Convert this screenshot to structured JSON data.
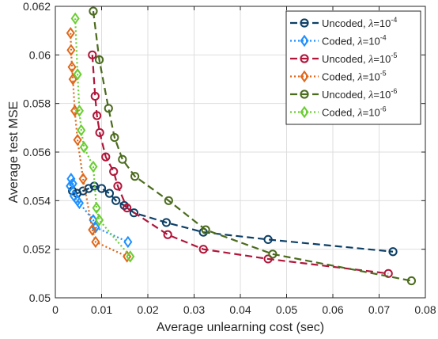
{
  "chart_data": {
    "type": "line",
    "xlabel": "Average unlearning cost (sec)",
    "ylabel": "Average test MSE",
    "xlim": [
      0,
      0.08
    ],
    "ylim": [
      0.05,
      0.062
    ],
    "x_ticks": [
      "0",
      "0.01",
      "0.02",
      "0.03",
      "0.04",
      "0.05",
      "0.06",
      "0.07",
      "0.08"
    ],
    "y_ticks": [
      "0.05",
      "0.052",
      "0.054",
      "0.056",
      "0.058",
      "0.06",
      "0.062"
    ],
    "grid": true,
    "legend_position": "top-right",
    "series": [
      {
        "name": "Uncoded, λ=10^-4",
        "label_text": "Uncoded, ",
        "lambda_sym": "λ",
        "lambda_base": "=10",
        "lambda_exp": "-4",
        "color": "#0d3f66",
        "line_style": "dashed",
        "marker": "circle",
        "points": [
          [
            0.0037,
            0.0544
          ],
          [
            0.0047,
            0.0543
          ],
          [
            0.006,
            0.0544
          ],
          [
            0.0072,
            0.0545
          ],
          [
            0.0084,
            0.0546
          ],
          [
            0.01,
            0.0545
          ],
          [
            0.0117,
            0.0543
          ],
          [
            0.0131,
            0.054
          ],
          [
            0.0149,
            0.0538
          ],
          [
            0.017,
            0.0535
          ],
          [
            0.024,
            0.0531
          ],
          [
            0.032,
            0.0527
          ],
          [
            0.046,
            0.0524
          ],
          [
            0.073,
            0.0519
          ]
        ]
      },
      {
        "name": "Coded, λ=10^-4",
        "label_text": "Coded, ",
        "lambda_sym": "λ",
        "lambda_base": "=10",
        "lambda_exp": "-4",
        "color": "#1e90ff",
        "line_style": "dotted",
        "marker": "diamond",
        "points": [
          [
            0.0032,
            0.0546
          ],
          [
            0.0034,
            0.0549
          ],
          [
            0.0038,
            0.0547
          ],
          [
            0.004,
            0.0542
          ],
          [
            0.0048,
            0.054
          ],
          [
            0.0052,
            0.0539
          ],
          [
            0.0082,
            0.0532
          ],
          [
            0.0087,
            0.0529
          ],
          [
            0.0157,
            0.0523
          ]
        ]
      },
      {
        "name": "Uncoded, λ=10^-5",
        "label_text": "Uncoded, ",
        "lambda_sym": "λ",
        "lambda_base": "=10",
        "lambda_exp": "-5",
        "color": "#b0163a",
        "line_style": "dashed",
        "marker": "circle",
        "points": [
          [
            0.008,
            0.06
          ],
          [
            0.0086,
            0.0583
          ],
          [
            0.009,
            0.0575
          ],
          [
            0.0096,
            0.0568
          ],
          [
            0.0109,
            0.0558
          ],
          [
            0.0126,
            0.0552
          ],
          [
            0.0135,
            0.0546
          ],
          [
            0.0155,
            0.0537
          ],
          [
            0.0243,
            0.0526
          ],
          [
            0.032,
            0.052
          ],
          [
            0.046,
            0.0516
          ],
          [
            0.072,
            0.051
          ]
        ]
      },
      {
        "name": "Coded, λ=10^-5",
        "label_text": "Coded, ",
        "lambda_sym": "λ",
        "lambda_base": "=10",
        "lambda_exp": "-5",
        "color": "#e0681a",
        "line_style": "dotted",
        "marker": "diamond",
        "points": [
          [
            0.0033,
            0.0609
          ],
          [
            0.0034,
            0.0602
          ],
          [
            0.0036,
            0.0595
          ],
          [
            0.0038,
            0.059
          ],
          [
            0.0042,
            0.0577
          ],
          [
            0.0048,
            0.0565
          ],
          [
            0.006,
            0.0549
          ],
          [
            0.008,
            0.0528
          ],
          [
            0.0087,
            0.0523
          ],
          [
            0.0155,
            0.0517
          ]
        ]
      },
      {
        "name": "Uncoded, λ=10^-6",
        "label_text": "Uncoded, ",
        "lambda_sym": "λ",
        "lambda_base": "=10",
        "lambda_exp": "-6",
        "color": "#4b6b1d",
        "line_style": "dashed",
        "marker": "circle",
        "points": [
          [
            0.0082,
            0.0618
          ],
          [
            0.0095,
            0.0598
          ],
          [
            0.0115,
            0.0578
          ],
          [
            0.0128,
            0.0566
          ],
          [
            0.0145,
            0.0557
          ],
          [
            0.0172,
            0.055
          ],
          [
            0.0245,
            0.054
          ],
          [
            0.0325,
            0.0528
          ],
          [
            0.047,
            0.0518
          ],
          [
            0.077,
            0.0507
          ]
        ]
      },
      {
        "name": "Coded, λ=10^-6",
        "label_text": "Coded, ",
        "lambda_sym": "λ",
        "lambda_base": "=10",
        "lambda_exp": "-6",
        "color": "#6acd32",
        "line_style": "dotted",
        "marker": "diamond",
        "points": [
          [
            0.0043,
            0.0615
          ],
          [
            0.0048,
            0.0592
          ],
          [
            0.0052,
            0.0577
          ],
          [
            0.0056,
            0.0569
          ],
          [
            0.0062,
            0.0562
          ],
          [
            0.0082,
            0.0554
          ],
          [
            0.0089,
            0.0537
          ],
          [
            0.0095,
            0.0532
          ],
          [
            0.0162,
            0.0517
          ]
        ]
      }
    ]
  }
}
